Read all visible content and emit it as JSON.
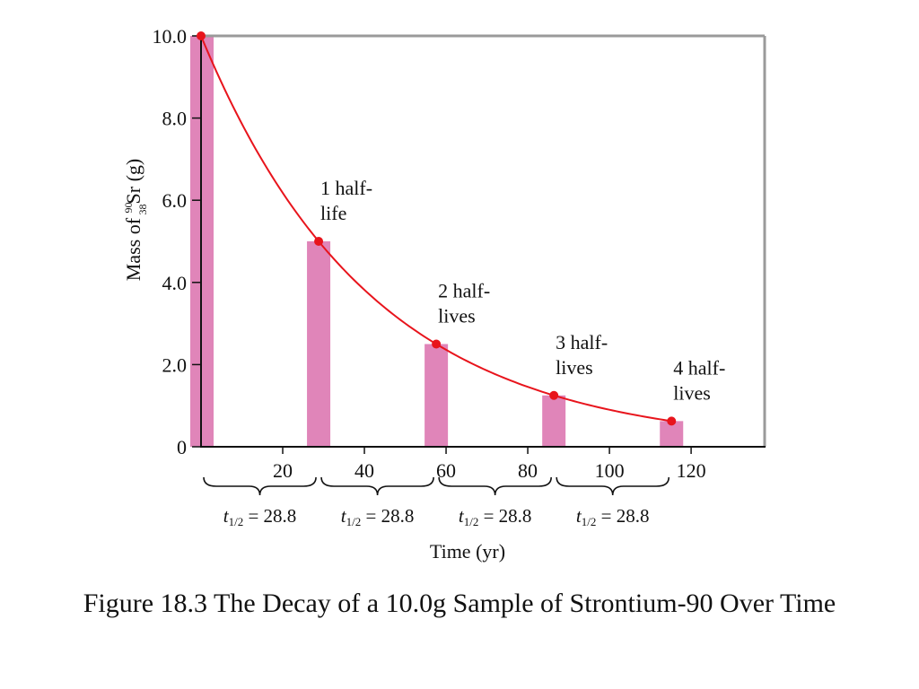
{
  "caption": "Figure 18.3 The Decay of a 10.0g Sample of Strontium-90 Over Time",
  "chart_data": {
    "type": "bar",
    "x": [
      0,
      28.8,
      57.6,
      86.4,
      115.2
    ],
    "values": [
      10.0,
      5.0,
      2.5,
      1.25,
      0.625
    ],
    "curve": "exponential decay, half-life 28.8",
    "xlim": [
      0,
      138
    ],
    "ylim": [
      0,
      10
    ],
    "x_ticks": [
      20,
      40,
      60,
      80,
      100,
      120
    ],
    "x_tick_labels": [
      "20",
      "40",
      "60",
      "80",
      "100",
      "120"
    ],
    "y_ticks": [
      0,
      2,
      4,
      6,
      8,
      10
    ],
    "y_tick_labels": [
      "0",
      "2.0",
      "4.0",
      "6.0",
      "8.0",
      "10.0"
    ],
    "ylabel_prefix": "Mass of ",
    "ylabel_mass_number": "90",
    "ylabel_atomic_number": "38",
    "ylabel_element": "Sr (g)",
    "xlabel": "Time (yr)",
    "annotations": [
      {
        "x": 28.8,
        "lines": [
          "1 half-",
          "life"
        ]
      },
      {
        "x": 57.6,
        "lines": [
          "2 half-",
          "lives"
        ]
      },
      {
        "x": 86.4,
        "lines": [
          "3 half-",
          "lives"
        ]
      },
      {
        "x": 115.2,
        "lines": [
          "4 half-",
          "lives"
        ]
      }
    ],
    "half_life_intervals": [
      {
        "from": 0,
        "to": 28.8,
        "symbol": "t",
        "sub": "1/2",
        "value": "= 28.8"
      },
      {
        "from": 28.8,
        "to": 57.6,
        "symbol": "t",
        "sub": "1/2",
        "value": "= 28.8"
      },
      {
        "from": 57.6,
        "to": 86.4,
        "symbol": "t",
        "sub": "1/2",
        "value": "= 28.8"
      },
      {
        "from": 86.4,
        "to": 115.2,
        "symbol": "t",
        "sub": "1/2",
        "value": "= 28.8"
      }
    ],
    "colors": {
      "bar": "#e085b9",
      "curve": "#e8141c",
      "point": "#e8141c",
      "frame": "#9a9a9a",
      "axis": "#111111"
    }
  }
}
